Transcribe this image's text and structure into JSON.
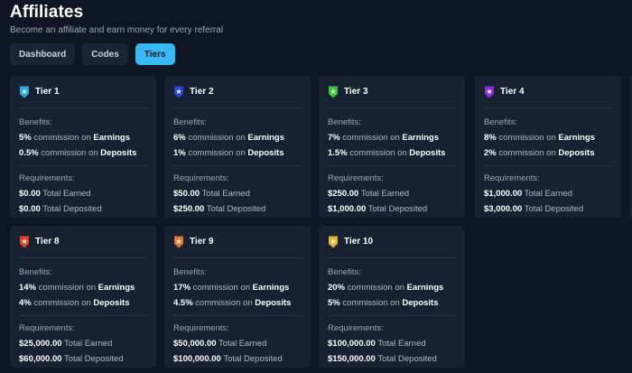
{
  "header": {
    "title": "Affiliates",
    "subtitle": "Become an affiliate and earn money for every referral"
  },
  "tabs": [
    {
      "label": "Dashboard"
    },
    {
      "label": "Codes"
    },
    {
      "label": "Tiers"
    }
  ],
  "common": {
    "benefits_label": "Benefits:",
    "requirements_label": "Requirements:",
    "commission_on": "commission on",
    "earnings": "Earnings",
    "deposits": "Deposits",
    "total_earned": "Total Earned",
    "total_deposited": "Total Deposited"
  },
  "tiers": [
    {
      "name": "Tier 1",
      "earn_pct": "5%",
      "dep_pct": "0.5%",
      "earned": "$0.00",
      "deposited": "$0.00",
      "color": "#2aa7e0"
    },
    {
      "name": "Tier 2",
      "earn_pct": "6%",
      "dep_pct": "1%",
      "earned": "$50.00",
      "deposited": "$250.00",
      "color": "#2446d8"
    },
    {
      "name": "Tier 3",
      "earn_pct": "7%",
      "dep_pct": "1.5%",
      "earned": "$250.00",
      "deposited": "$1,000.00",
      "color": "#3cc43c"
    },
    {
      "name": "Tier 4",
      "earn_pct": "8%",
      "dep_pct": "2%",
      "earned": "$1,000.00",
      "deposited": "$3,000.00",
      "color": "#8a2bd8"
    },
    {
      "name": "Tier 8",
      "earn_pct": "14%",
      "dep_pct": "4%",
      "earned": "$25,000.00",
      "deposited": "$60,000.00",
      "color": "#e0452a"
    },
    {
      "name": "Tier 9",
      "earn_pct": "17%",
      "dep_pct": "4.5%",
      "earned": "$50,000.00",
      "deposited": "$100,000.00",
      "color": "#e0782a"
    },
    {
      "name": "Tier 10",
      "earn_pct": "20%",
      "dep_pct": "5%",
      "earned": "$100,000.00",
      "deposited": "$150,000.00",
      "color": "#e0b32a"
    }
  ]
}
